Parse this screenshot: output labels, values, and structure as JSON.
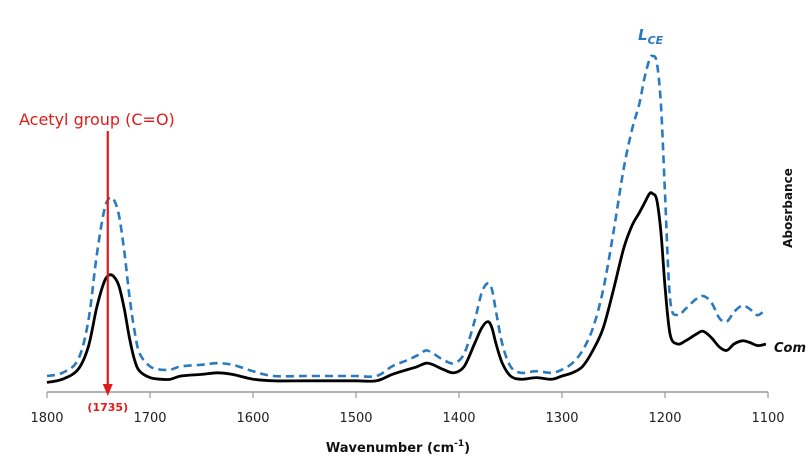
{
  "chart_data": {
    "type": "line",
    "xlabel": "Wavenumber (cm",
    "xlabel_sup": "-1",
    "xlabel_close": ")",
    "ylabel": "Abosrbance",
    "xlim": [
      1800,
      1100
    ],
    "x_ticks": [
      "1800",
      "1700",
      "1600",
      "1500",
      "1400",
      "1300",
      "1200",
      "1100"
    ],
    "grid": false,
    "annotation": {
      "label": "Acetyl group (C=O)",
      "peak_label": "(1735)",
      "x": 1741
    },
    "series": [
      {
        "name": "L",
        "name_sub": "CE",
        "color": "#2a7abf",
        "style": "dashed",
        "x": [
          1800,
          1785,
          1770,
          1760,
          1752,
          1745,
          1740,
          1735,
          1730,
          1725,
          1720,
          1715,
          1710,
          1700,
          1690,
          1680,
          1670,
          1650,
          1635,
          1620,
          1600,
          1580,
          1550,
          1520,
          1500,
          1480,
          1465,
          1450,
          1440,
          1432,
          1425,
          1415,
          1405,
          1395,
          1385,
          1378,
          1372,
          1368,
          1364,
          1358,
          1350,
          1340,
          1325,
          1310,
          1300,
          1290,
          1280,
          1270,
          1260,
          1250,
          1240,
          1232,
          1225,
          1220,
          1215,
          1212,
          1208,
          1204,
          1200,
          1195,
          1188,
          1180,
          1170,
          1163,
          1155,
          1147,
          1140,
          1133,
          1125,
          1118,
          1110,
          1102
        ],
        "y": [
          0.05,
          0.06,
          0.1,
          0.22,
          0.42,
          0.56,
          0.605,
          0.6,
          0.55,
          0.44,
          0.3,
          0.19,
          0.12,
          0.08,
          0.07,
          0.07,
          0.08,
          0.085,
          0.09,
          0.085,
          0.065,
          0.05,
          0.05,
          0.05,
          0.05,
          0.05,
          0.08,
          0.1,
          0.115,
          0.13,
          0.12,
          0.1,
          0.09,
          0.12,
          0.22,
          0.31,
          0.34,
          0.32,
          0.25,
          0.15,
          0.08,
          0.06,
          0.065,
          0.06,
          0.07,
          0.09,
          0.13,
          0.2,
          0.32,
          0.5,
          0.7,
          0.82,
          0.9,
          0.98,
          1.04,
          1.05,
          1.03,
          0.9,
          0.62,
          0.29,
          0.24,
          0.26,
          0.29,
          0.3,
          0.28,
          0.23,
          0.22,
          0.25,
          0.27,
          0.26,
          0.24,
          0.26
        ]
      },
      {
        "name": "Com",
        "color": "#000000",
        "style": "solid",
        "x": [
          1800,
          1785,
          1770,
          1760,
          1752,
          1745,
          1740,
          1735,
          1730,
          1725,
          1720,
          1715,
          1710,
          1700,
          1690,
          1680,
          1670,
          1650,
          1635,
          1620,
          1600,
          1580,
          1550,
          1520,
          1500,
          1480,
          1465,
          1450,
          1440,
          1432,
          1425,
          1415,
          1405,
          1395,
          1385,
          1378,
          1372,
          1368,
          1364,
          1358,
          1350,
          1340,
          1325,
          1310,
          1300,
          1290,
          1280,
          1270,
          1260,
          1250,
          1240,
          1232,
          1225,
          1220,
          1215,
          1212,
          1208,
          1204,
          1200,
          1195,
          1188,
          1180,
          1170,
          1163,
          1155,
          1147,
          1140,
          1133,
          1125,
          1118,
          1110,
          1102
        ],
        "y": [
          0.03,
          0.04,
          0.07,
          0.14,
          0.26,
          0.34,
          0.365,
          0.36,
          0.33,
          0.26,
          0.17,
          0.1,
          0.065,
          0.045,
          0.04,
          0.04,
          0.05,
          0.055,
          0.06,
          0.055,
          0.04,
          0.035,
          0.035,
          0.035,
          0.035,
          0.035,
          0.055,
          0.07,
          0.08,
          0.09,
          0.085,
          0.07,
          0.06,
          0.08,
          0.15,
          0.2,
          0.22,
          0.2,
          0.15,
          0.09,
          0.05,
          0.04,
          0.045,
          0.04,
          0.05,
          0.06,
          0.08,
          0.13,
          0.2,
          0.32,
          0.45,
          0.52,
          0.56,
          0.59,
          0.62,
          0.62,
          0.6,
          0.5,
          0.33,
          0.18,
          0.15,
          0.16,
          0.18,
          0.19,
          0.17,
          0.14,
          0.13,
          0.15,
          0.16,
          0.155,
          0.145,
          0.15
        ]
      }
    ]
  }
}
